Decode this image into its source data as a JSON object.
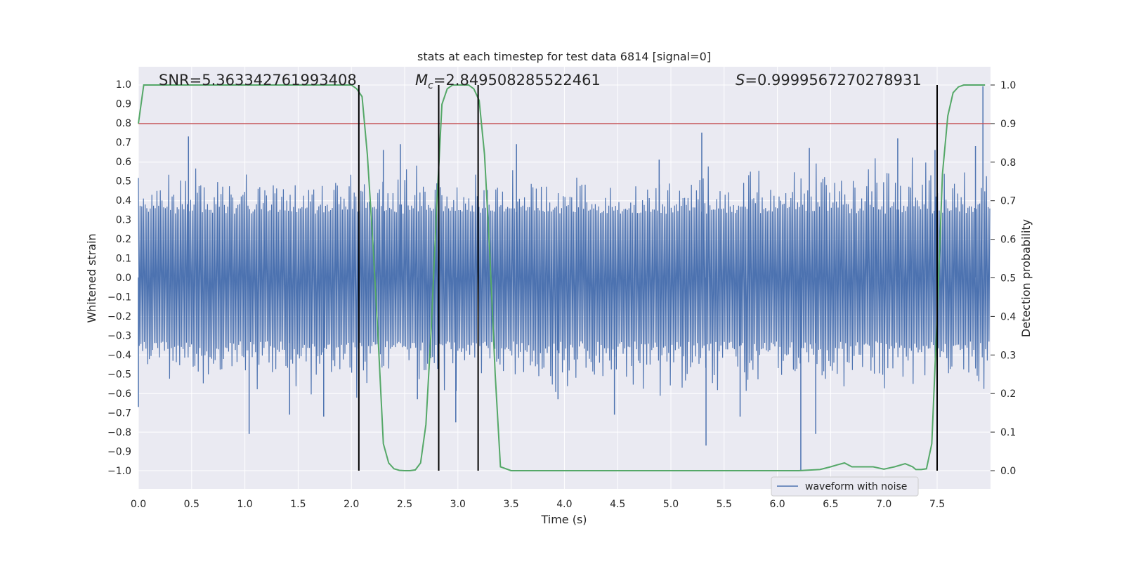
{
  "chart_data": {
    "type": "line",
    "title": "stats at each timestep for test data 6814 [signal=0]",
    "xlabel": "Time (s)",
    "ylabel": "Whitened strain",
    "y2label": "Detection probability",
    "xlim": [
      0.0,
      8.0
    ],
    "ylim": [
      -1.1,
      1.1
    ],
    "y2lim": [
      -0.05,
      1.05
    ],
    "x_ticks": [
      "0.0",
      "0.5",
      "1.0",
      "1.5",
      "2.0",
      "2.5",
      "3.0",
      "3.5",
      "4.0",
      "4.5",
      "5.0",
      "5.5",
      "6.0",
      "6.5",
      "7.0",
      "7.5"
    ],
    "x_tick_values": [
      0.0,
      0.5,
      1.0,
      1.5,
      2.0,
      2.5,
      3.0,
      3.5,
      4.0,
      4.5,
      5.0,
      5.5,
      6.0,
      6.5,
      7.0,
      7.5
    ],
    "y_ticks": [
      "1.0",
      "0.9",
      "0.8",
      "0.7",
      "0.6",
      "0.5",
      "0.4",
      "0.3",
      "0.2",
      "0.1",
      "0.0",
      "-0.1",
      "-0.2",
      "-0.3",
      "-0.4",
      "-0.5",
      "-0.6",
      "-0.7",
      "-0.8",
      "-0.9",
      "-1.0"
    ],
    "y_tick_values": [
      1.0,
      0.9,
      0.8,
      0.7,
      0.6,
      0.5,
      0.4,
      0.3,
      0.2,
      0.1,
      0.0,
      -0.1,
      -0.2,
      -0.3,
      -0.4,
      -0.5,
      -0.6,
      -0.7,
      -0.8,
      -0.9,
      -1.0
    ],
    "y2_ticks": [
      "1.0",
      "0.9",
      "0.8",
      "0.7",
      "0.6",
      "0.5",
      "0.4",
      "0.3",
      "0.2",
      "0.1",
      "0.0"
    ],
    "y2_tick_values": [
      1.0,
      0.9,
      0.8,
      0.7,
      0.6,
      0.5,
      0.4,
      0.3,
      0.2,
      0.1,
      0.0
    ],
    "grid": true,
    "legend": {
      "placement": "lower-right",
      "entries": [
        {
          "label": "waveform with noise",
          "color": "#4c72b0"
        }
      ]
    },
    "annotations": {
      "snr": "SNR=5.363342761993408",
      "mc_symbol": "M",
      "mc_sub": "c",
      "mc_value": "=2.849508285522461",
      "s_symbol": "S",
      "s_value": "=0.9999567270278931"
    },
    "colors": {
      "waveform": "#4c72b0",
      "probability": "#55a868",
      "threshold": "#c44e52",
      "boundary": "#000000",
      "plot_bg": "#eaeaf2",
      "grid": "#ffffff"
    },
    "threshold": 0.9,
    "boundaries": [
      2.07,
      2.82,
      3.19,
      7.5
    ],
    "waveform": {
      "name": "waveform with noise",
      "spikes": [
        {
          "x": 0.0,
          "y": -0.67
        },
        {
          "x": 0.47,
          "y": 0.73
        },
        {
          "x": 1.04,
          "y": -0.81
        },
        {
          "x": 1.42,
          "y": -0.71
        },
        {
          "x": 1.74,
          "y": -0.72
        },
        {
          "x": 2.3,
          "y": 0.66
        },
        {
          "x": 2.46,
          "y": 0.69
        },
        {
          "x": 2.62,
          "y": -0.63
        },
        {
          "x": 2.98,
          "y": -0.75
        },
        {
          "x": 3.55,
          "y": 0.69
        },
        {
          "x": 3.94,
          "y": -0.63
        },
        {
          "x": 4.47,
          "y": -0.71
        },
        {
          "x": 4.89,
          "y": 0.61
        },
        {
          "x": 5.29,
          "y": 0.75
        },
        {
          "x": 5.33,
          "y": -0.87
        },
        {
          "x": 5.65,
          "y": -0.72
        },
        {
          "x": 6.22,
          "y": -1.0
        },
        {
          "x": 6.3,
          "y": 0.67
        },
        {
          "x": 6.36,
          "y": -0.81
        },
        {
          "x": 7.13,
          "y": 0.72
        },
        {
          "x": 7.48,
          "y": 0.66
        },
        {
          "x": 7.86,
          "y": 0.68
        },
        {
          "x": 7.93,
          "y": 0.99
        }
      ]
    },
    "probability": {
      "name": "detection probability",
      "x": [
        0.0,
        0.05,
        0.1,
        0.2,
        0.3,
        0.4,
        0.5,
        0.6,
        0.7,
        0.8,
        0.9,
        1.0,
        1.1,
        1.2,
        1.3,
        1.4,
        1.5,
        1.6,
        1.7,
        1.8,
        1.9,
        2.0,
        2.05,
        2.1,
        2.15,
        2.2,
        2.25,
        2.3,
        2.35,
        2.4,
        2.45,
        2.5,
        2.55,
        2.6,
        2.65,
        2.7,
        2.75,
        2.8,
        2.85,
        2.9,
        2.95,
        3.0,
        3.05,
        3.1,
        3.15,
        3.2,
        3.25,
        3.3,
        3.35,
        3.4,
        3.5,
        3.6,
        3.7,
        3.8,
        3.9,
        4.0,
        4.2,
        4.4,
        4.6,
        4.8,
        5.0,
        5.2,
        5.4,
        5.6,
        5.8,
        6.0,
        6.2,
        6.4,
        6.5,
        6.56,
        6.63,
        6.7,
        6.8,
        6.9,
        7.0,
        7.1,
        7.2,
        7.27,
        7.3,
        7.35,
        7.4,
        7.45,
        7.5,
        7.55,
        7.6,
        7.65,
        7.7,
        7.75,
        7.8,
        7.9,
        7.95
      ],
      "y": [
        0.9,
        1.0,
        1.0,
        1.0,
        1.0,
        1.0,
        1.0,
        1.0,
        1.0,
        1.0,
        1.0,
        1.0,
        1.0,
        1.0,
        1.0,
        1.0,
        1.0,
        1.0,
        1.0,
        1.0,
        1.0,
        1.0,
        0.99,
        0.97,
        0.82,
        0.6,
        0.35,
        0.07,
        0.02,
        0.005,
        0.001,
        0.0,
        0.0,
        0.002,
        0.02,
        0.12,
        0.37,
        0.68,
        0.95,
        0.99,
        1.0,
        1.0,
        1.0,
        1.0,
        0.99,
        0.96,
        0.82,
        0.56,
        0.25,
        0.01,
        0.0,
        0.0,
        0.0,
        0.0,
        0.0,
        0.0,
        0.0,
        0.0,
        0.0,
        0.0,
        0.0,
        0.0,
        0.0,
        0.0,
        0.0,
        0.0,
        0.0,
        0.003,
        0.01,
        0.015,
        0.02,
        0.01,
        0.01,
        0.01,
        0.004,
        0.01,
        0.018,
        0.01,
        0.003,
        0.003,
        0.005,
        0.07,
        0.4,
        0.77,
        0.92,
        0.98,
        0.995,
        1.0,
        1.0,
        1.0,
        1.0
      ]
    }
  }
}
